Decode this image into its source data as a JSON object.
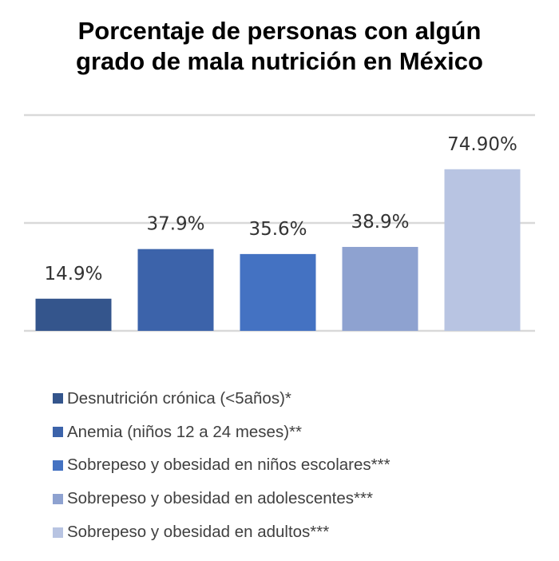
{
  "chart_data": {
    "type": "bar",
    "title": "Porcentaje de personas con algún grado de mala nutrición en México",
    "title_lines": [
      "Porcentaje de personas con algún",
      "grado de mala nutrición en México"
    ],
    "categories": [
      "Desnutrición crónica (<5años)*",
      "Anemia (niños 12 a 24 meses)**",
      "Sobrepeso y obesidad en niños escolares***",
      "Sobrepeso y obesidad en adolescentes***",
      "Sobrepeso y obesidad en adultos***"
    ],
    "values": [
      14.9,
      37.9,
      35.6,
      38.9,
      74.9
    ],
    "data_labels": [
      "14.9%",
      "37.9%",
      "35.6%",
      "38.9%",
      "74.90%"
    ],
    "colors": [
      "#34558c",
      "#3c63aa",
      "#4472c2",
      "#8ea2d0",
      "#b8c4e2"
    ],
    "xlabel": "",
    "ylabel": "",
    "ylim": [
      0,
      100
    ],
    "gridlines": [
      0,
      50,
      100
    ],
    "grid": true,
    "legend_position": "bottom"
  }
}
